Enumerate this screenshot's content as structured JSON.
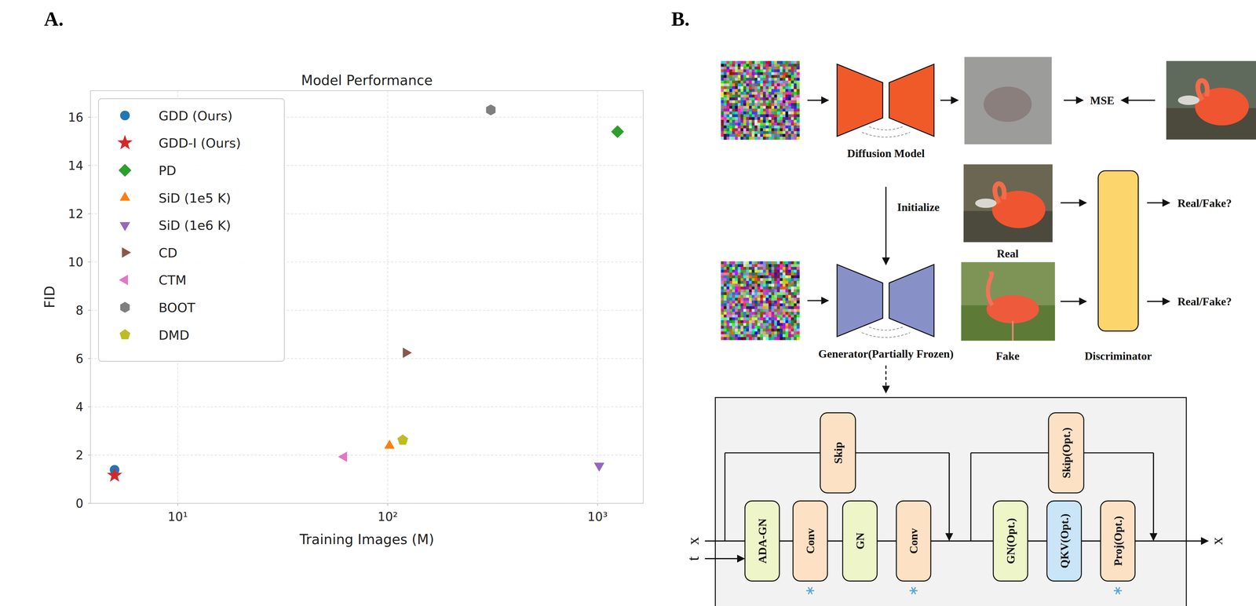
{
  "panels": [
    "A.",
    "B."
  ],
  "chart_data": {
    "type": "scatter",
    "title": "Model Performance",
    "x_label": "Training Images (M)",
    "y_label": "FID",
    "log": "x",
    "grid": true,
    "legend": "upper left",
    "xlim": [
      3.84,
      1650
    ],
    "ylim": [
      0,
      17.1
    ],
    "xticks": [
      {
        "value": 10,
        "label": "10¹"
      },
      {
        "value": 100,
        "label": "10²"
      },
      {
        "value": 1000,
        "label": "10³"
      }
    ],
    "yticks": [
      0,
      2,
      4,
      6,
      8,
      10,
      12,
      14,
      16
    ],
    "series": [
      {
        "name": "GDD (Ours)",
        "color": "#1f77b4",
        "marker": "circle",
        "x": [
          5
        ],
        "values": [
          1.39
        ]
      },
      {
        "name": "GDD-I (Ours)",
        "color": "#d62728",
        "marker": "star",
        "x": [
          5
        ],
        "values": [
          1.16
        ]
      },
      {
        "name": "PD",
        "color": "#2ca02c",
        "marker": "diamond",
        "x": [
          1245
        ],
        "values": [
          15.4
        ]
      },
      {
        "name": "SiD (1e5 K)",
        "color": "#ff7f0e",
        "marker": "triangle-up",
        "x": [
          102
        ],
        "values": [
          2.39
        ]
      },
      {
        "name": "SiD (1e6 K)",
        "color": "#9467bd",
        "marker": "triangle-down",
        "x": [
          1018
        ],
        "values": [
          1.56
        ]
      },
      {
        "name": "CD",
        "color": "#8c564b",
        "marker": "triangle-right",
        "x": [
          122
        ],
        "values": [
          6.24
        ]
      },
      {
        "name": "CTM",
        "color": "#e377c2",
        "marker": "triangle-left",
        "x": [
          62
        ],
        "values": [
          1.93
        ]
      },
      {
        "name": "BOOT",
        "color": "#7f7f7f",
        "marker": "hexagon",
        "x": [
          310
        ],
        "values": [
          16.3
        ]
      },
      {
        "name": "DMD",
        "color": "#bcbd22",
        "marker": "pentagon",
        "x": [
          118
        ],
        "values": [
          2.62
        ]
      }
    ]
  },
  "diagram": {
    "diffusion_model": "Diffusion Model",
    "loss": "MSE",
    "initialize": "Initialize",
    "real": "Real",
    "fake": "Fake",
    "discriminator": "Discriminator",
    "outputs": [
      "Real/Fake?",
      "Real/Fake?"
    ],
    "generator": "Generator(Partially Frozen)",
    "block_inputs": [
      "t",
      "x"
    ],
    "block_output": "x",
    "blocks": [
      {
        "label": "ADA-GN",
        "kind": "norm",
        "frozen": false
      },
      {
        "label": "Conv",
        "kind": "conv",
        "frozen": true
      },
      {
        "label": "GN",
        "kind": "norm",
        "frozen": false
      },
      {
        "label": "Conv",
        "kind": "conv",
        "frozen": true
      },
      {
        "label": "GN(Opt.)",
        "kind": "norm",
        "frozen": false
      },
      {
        "label": "QKV(Opt.)",
        "kind": "attn",
        "frozen": false
      },
      {
        "label": "Proj(Opt.)",
        "kind": "conv",
        "frozen": true
      }
    ],
    "skips": [
      {
        "label": "Skip",
        "kind": "conv",
        "frozen": false
      },
      {
        "label": "Skip(Opt.)",
        "kind": "conv",
        "frozen": false
      }
    ]
  }
}
